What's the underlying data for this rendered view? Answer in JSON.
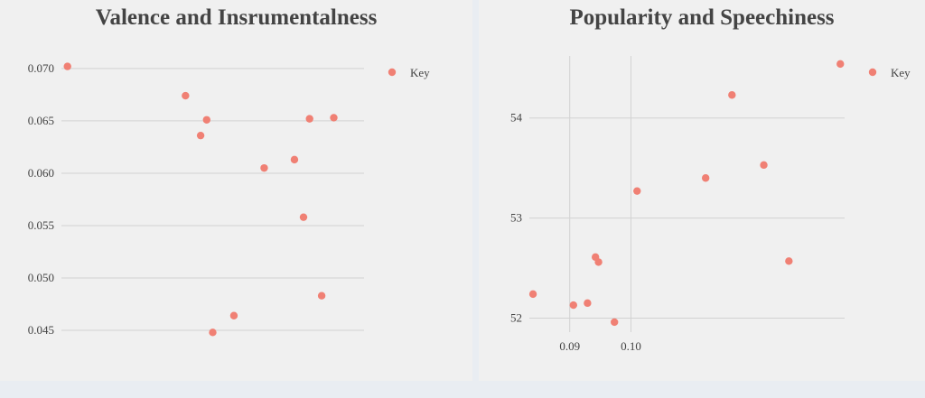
{
  "chart_data": [
    {
      "type": "scatter",
      "title": "Valence and Insrumentalness",
      "xlabel": "",
      "ylabel": "",
      "ylim": [
        0.0425,
        0.0712
      ],
      "xlim": [
        0,
        1
      ],
      "y_ticks": [
        0.045,
        0.05,
        0.055,
        0.06,
        0.065,
        0.07
      ],
      "y_tick_labels": [
        "0.045",
        "0.050",
        "0.055",
        "0.060",
        "0.065",
        "0.070"
      ],
      "grid": "horizontal",
      "legend_position": "right",
      "series": [
        {
          "name": "Key",
          "color": "#f08074",
          "points": [
            {
              "x": 0.02,
              "y": 0.0702
            },
            {
              "x": 0.41,
              "y": 0.0674
            },
            {
              "x": 0.48,
              "y": 0.0651
            },
            {
              "x": 0.46,
              "y": 0.0636
            },
            {
              "x": 0.5,
              "y": 0.0448
            },
            {
              "x": 0.57,
              "y": 0.0464
            },
            {
              "x": 0.67,
              "y": 0.0605
            },
            {
              "x": 0.77,
              "y": 0.0613
            },
            {
              "x": 0.8,
              "y": 0.0558
            },
            {
              "x": 0.82,
              "y": 0.0652
            },
            {
              "x": 0.86,
              "y": 0.0483
            },
            {
              "x": 0.9,
              "y": 0.0653
            }
          ]
        }
      ]
    },
    {
      "type": "scatter",
      "title": "Popularity and Speechiness",
      "xlabel": "",
      "ylabel": "",
      "xlim": [
        0.0834,
        0.1349
      ],
      "ylim": [
        51.86,
        54.62
      ],
      "x_ticks": [
        0.09,
        0.1
      ],
      "x_tick_labels": [
        "0.09",
        "0.10"
      ],
      "y_ticks": [
        52,
        53,
        54
      ],
      "y_tick_labels": [
        "52",
        "53",
        "54"
      ],
      "grid": "both",
      "legend_position": "right",
      "series": [
        {
          "name": "Key",
          "color": "#f08074",
          "points": [
            {
              "x": 0.084,
              "y": 52.24
            },
            {
              "x": 0.0906,
              "y": 52.13
            },
            {
              "x": 0.0929,
              "y": 52.15
            },
            {
              "x": 0.0942,
              "y": 52.61
            },
            {
              "x": 0.0947,
              "y": 52.56
            },
            {
              "x": 0.0973,
              "y": 51.96
            },
            {
              "x": 0.101,
              "y": 53.27
            },
            {
              "x": 0.1122,
              "y": 53.4
            },
            {
              "x": 0.1165,
              "y": 54.23
            },
            {
              "x": 0.1217,
              "y": 53.53
            },
            {
              "x": 0.1258,
              "y": 52.57
            },
            {
              "x": 0.1342,
              "y": 54.54
            }
          ]
        }
      ]
    }
  ]
}
